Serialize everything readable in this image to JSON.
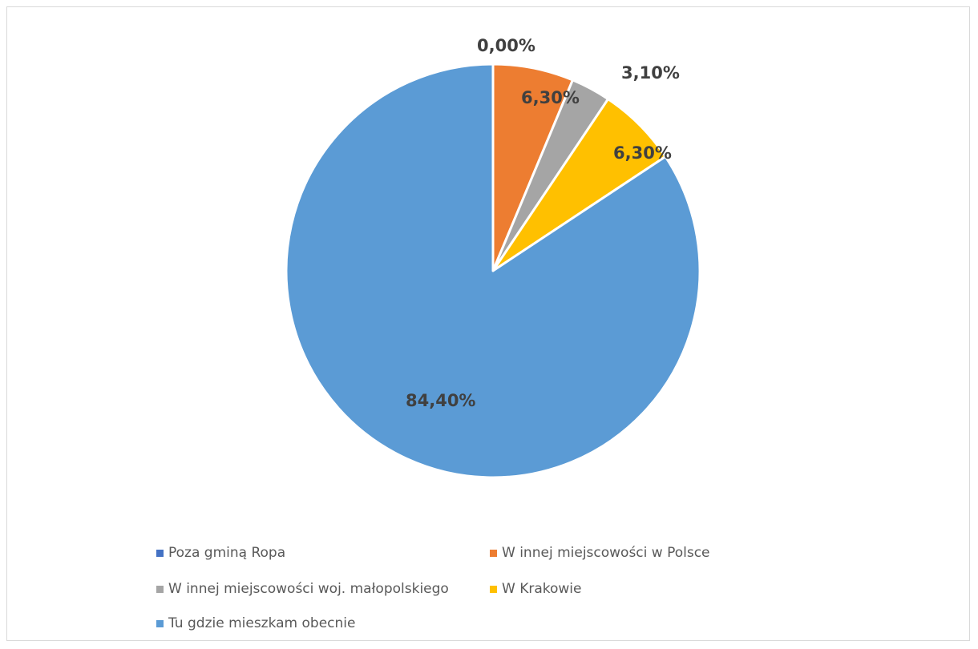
{
  "chart_data": {
    "type": "pie",
    "title": "",
    "start_angle_deg": 0,
    "direction": "clockwise",
    "legend_position": "bottom",
    "slices": [
      {
        "name": "Poza gminą Ropa",
        "value": 0.0,
        "label": "0,00%",
        "color": "#4472c4"
      },
      {
        "name": "W innej miejscowości w Polsce",
        "value": 6.3,
        "label": "6,30%",
        "color": "#ed7d31"
      },
      {
        "name": "W innej miejscowości woj. małopolskiego",
        "value": 3.1,
        "label": "3,10%",
        "color": "#a5a5a5"
      },
      {
        "name": "W Krakowie",
        "value": 6.3,
        "label": "6,30%",
        "color": "#ffc000"
      },
      {
        "name": "Tu gdzie mieszkam obecnie",
        "value": 84.4,
        "label": "84,40%",
        "color": "#5b9bd5"
      }
    ]
  },
  "legend": {
    "items": [
      {
        "label": "Poza gminą Ropa",
        "color": "#4472c4"
      },
      {
        "label": "W innej miejscowości w Polsce",
        "color": "#ed7d31"
      },
      {
        "label": "W innej miejscowości woj. małopolskiego",
        "color": "#a5a5a5"
      },
      {
        "label": "W Krakowie",
        "color": "#ffc000"
      },
      {
        "label": "Tu gdzie mieszkam obecnie",
        "color": "#5b9bd5"
      }
    ]
  }
}
